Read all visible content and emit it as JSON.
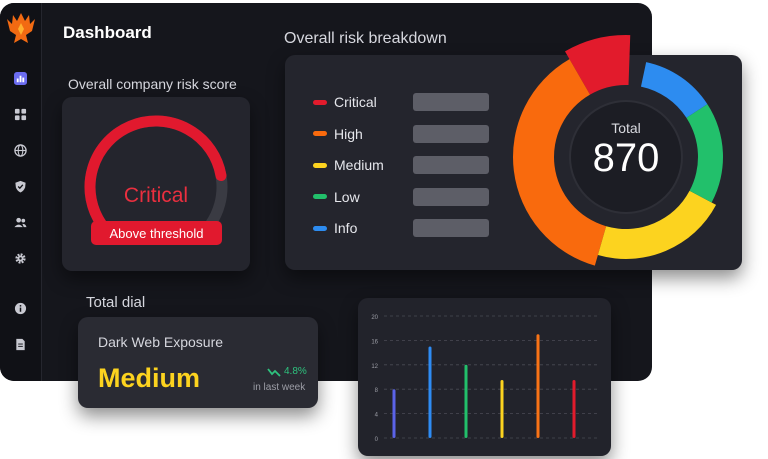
{
  "header": {
    "title": "Dashboard",
    "risk_breakdown_heading": "Overall risk breakdown",
    "risk_score_heading": "Overall company risk score",
    "total_dial_heading": "Total dial"
  },
  "sidebar": {
    "items": [
      {
        "icon": "bar-chart-icon"
      },
      {
        "icon": "grid-icon"
      },
      {
        "icon": "globe-icon"
      },
      {
        "icon": "shield-icon"
      },
      {
        "icon": "users-icon"
      },
      {
        "icon": "gear-icon"
      },
      {
        "icon": "info-icon"
      },
      {
        "icon": "document-icon"
      }
    ]
  },
  "risk_score": {
    "level": "Critical",
    "badge": "Above threshold",
    "gauge_fraction": 0.82,
    "color": "#e1192e"
  },
  "breakdown": {
    "total_label": "Total",
    "total_value": "870",
    "items": [
      {
        "label": "Critical",
        "color": "#e21b2c"
      },
      {
        "label": "High",
        "color": "#f96a0d"
      },
      {
        "label": "Medium",
        "color": "#fcd31f"
      },
      {
        "label": "Low",
        "color": "#22c06b"
      },
      {
        "label": "Info",
        "color": "#2d8cf0"
      }
    ]
  },
  "dark_web": {
    "title": "Dark Web Exposure",
    "level": "Medium",
    "change": "4.8%",
    "change_caption": "in last week",
    "level_color": "#fcd31f",
    "change_color": "#2ec27e"
  },
  "chart_data": {
    "type": "bar",
    "categories": [
      "1",
      "2",
      "3",
      "4",
      "5",
      "6"
    ],
    "values": [
      8,
      15,
      12,
      9.5,
      17,
      9.5
    ],
    "colors": [
      "#5b63e8",
      "#2e8cf5",
      "#22c06b",
      "#fcd31f",
      "#f97316",
      "#e21b2c"
    ],
    "yticks": [
      "0",
      "4",
      "8",
      "12",
      "16",
      "20"
    ],
    "ylim": [
      0,
      20
    ],
    "grid": true
  }
}
